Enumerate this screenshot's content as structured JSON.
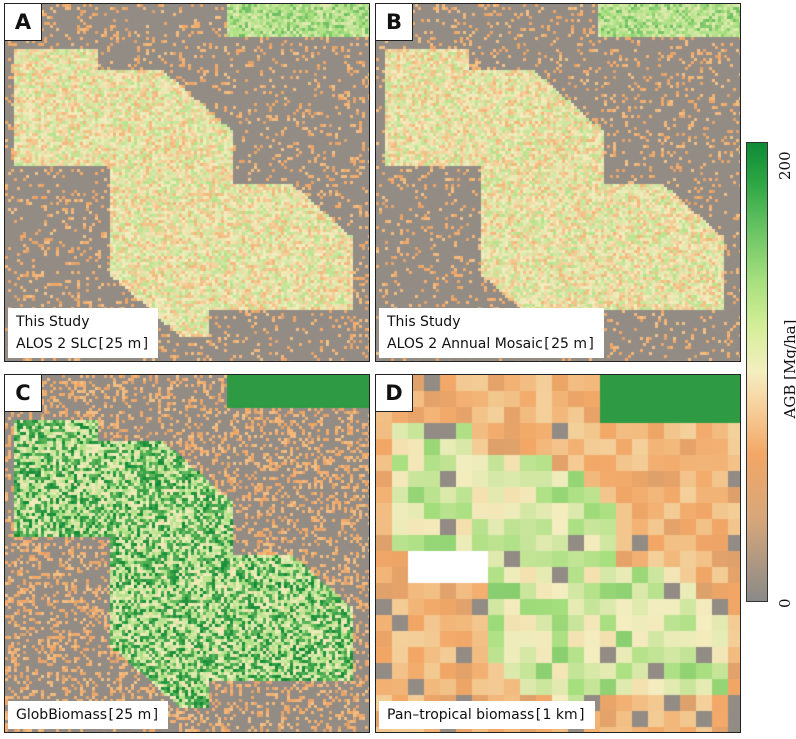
{
  "panels": [
    {
      "id": "A",
      "letter": "A",
      "caption_lines": [
        "This Study",
        "ALOS 2 SLC [ 25 m ]"
      ],
      "style": "fine"
    },
    {
      "id": "B",
      "letter": "B",
      "caption_lines": [
        "This Study",
        "ALOS 2 Annual Mosaic [ 25 m ]"
      ],
      "style": "fine"
    },
    {
      "id": "C",
      "letter": "C",
      "caption_lines": [
        "GlobBiomass [ 25 m ]"
      ],
      "style": "glob"
    },
    {
      "id": "D",
      "letter": "D",
      "caption_lines": [
        "Pan–tropical biomass [ 1 km ]"
      ],
      "style": "coarse"
    }
  ],
  "colorbar": {
    "label": "AGB [Mg/ha]",
    "max_label": "200",
    "min_label": "0",
    "min_value": 0,
    "max_value": 200,
    "colors": [
      "#8a8a88",
      "#f2a766",
      "#f4eec0",
      "#a6df7e",
      "#108a36"
    ]
  }
}
